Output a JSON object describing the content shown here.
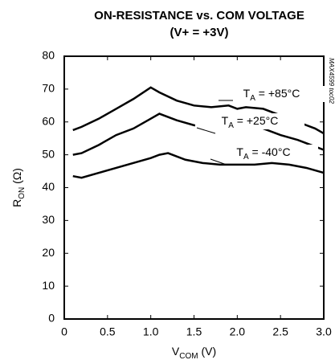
{
  "chart_data": {
    "type": "line",
    "title": "ON-RESISTANCE vs. COM VOLTAGE",
    "subtitle": "(V+ = +3V)",
    "xlabel": [
      "V",
      "COM",
      " (V)"
    ],
    "ylabel": [
      "R",
      "ON",
      " (Ω)"
    ],
    "annotation": "MAX4599 toc02",
    "xlim": [
      0,
      3
    ],
    "ylim": [
      0,
      80
    ],
    "xticks": [
      0,
      0.5,
      {
        "value": 1,
        "label": "1.0"
      },
      1.5,
      {
        "value": 2,
        "label": "2.0"
      },
      2.5,
      {
        "value": 3,
        "label": "3.0"
      }
    ],
    "yticks": [
      0,
      10,
      20,
      30,
      40,
      50,
      60,
      70,
      80
    ],
    "grid": false,
    "series": [
      {
        "name": [
          "T",
          "A",
          " = +85°C"
        ],
        "color": "#000000",
        "x": [
          0.1,
          0.2,
          0.4,
          0.6,
          0.8,
          1.0,
          1.1,
          1.3,
          1.5,
          1.7,
          1.9,
          2.0,
          2.1,
          2.3,
          2.5,
          2.7,
          2.9,
          3.0
        ],
        "values": [
          57.5,
          58.5,
          61,
          64,
          67,
          70.5,
          69,
          66.5,
          65,
          64.5,
          65,
          64,
          64.5,
          64,
          62,
          60,
          58,
          56.5
        ]
      },
      {
        "name": [
          "T",
          "A",
          " = +25°C"
        ],
        "color": "#000000",
        "x": [
          0.1,
          0.2,
          0.4,
          0.6,
          0.8,
          1.0,
          1.1,
          1.3,
          1.5,
          1.7,
          1.9,
          2.1,
          2.3,
          2.5,
          2.7,
          2.9,
          3.0
        ],
        "values": [
          50,
          50.5,
          53,
          56,
          58,
          61,
          62.5,
          60.5,
          59,
          58.5,
          59,
          59,
          58,
          56,
          54.5,
          52.5,
          51.5
        ]
      },
      {
        "name": [
          "T",
          "A",
          " = -40°C"
        ],
        "color": "#000000",
        "x": [
          0.1,
          0.2,
          0.4,
          0.6,
          0.8,
          1.0,
          1.1,
          1.2,
          1.4,
          1.6,
          1.8,
          2.0,
          2.2,
          2.4,
          2.6,
          2.8,
          3.0
        ],
        "values": [
          43.5,
          43,
          44.5,
          46,
          47.5,
          49,
          50,
          50.5,
          48.5,
          47.5,
          47,
          47,
          47,
          47.5,
          47,
          46,
          44.5
        ]
      }
    ]
  }
}
